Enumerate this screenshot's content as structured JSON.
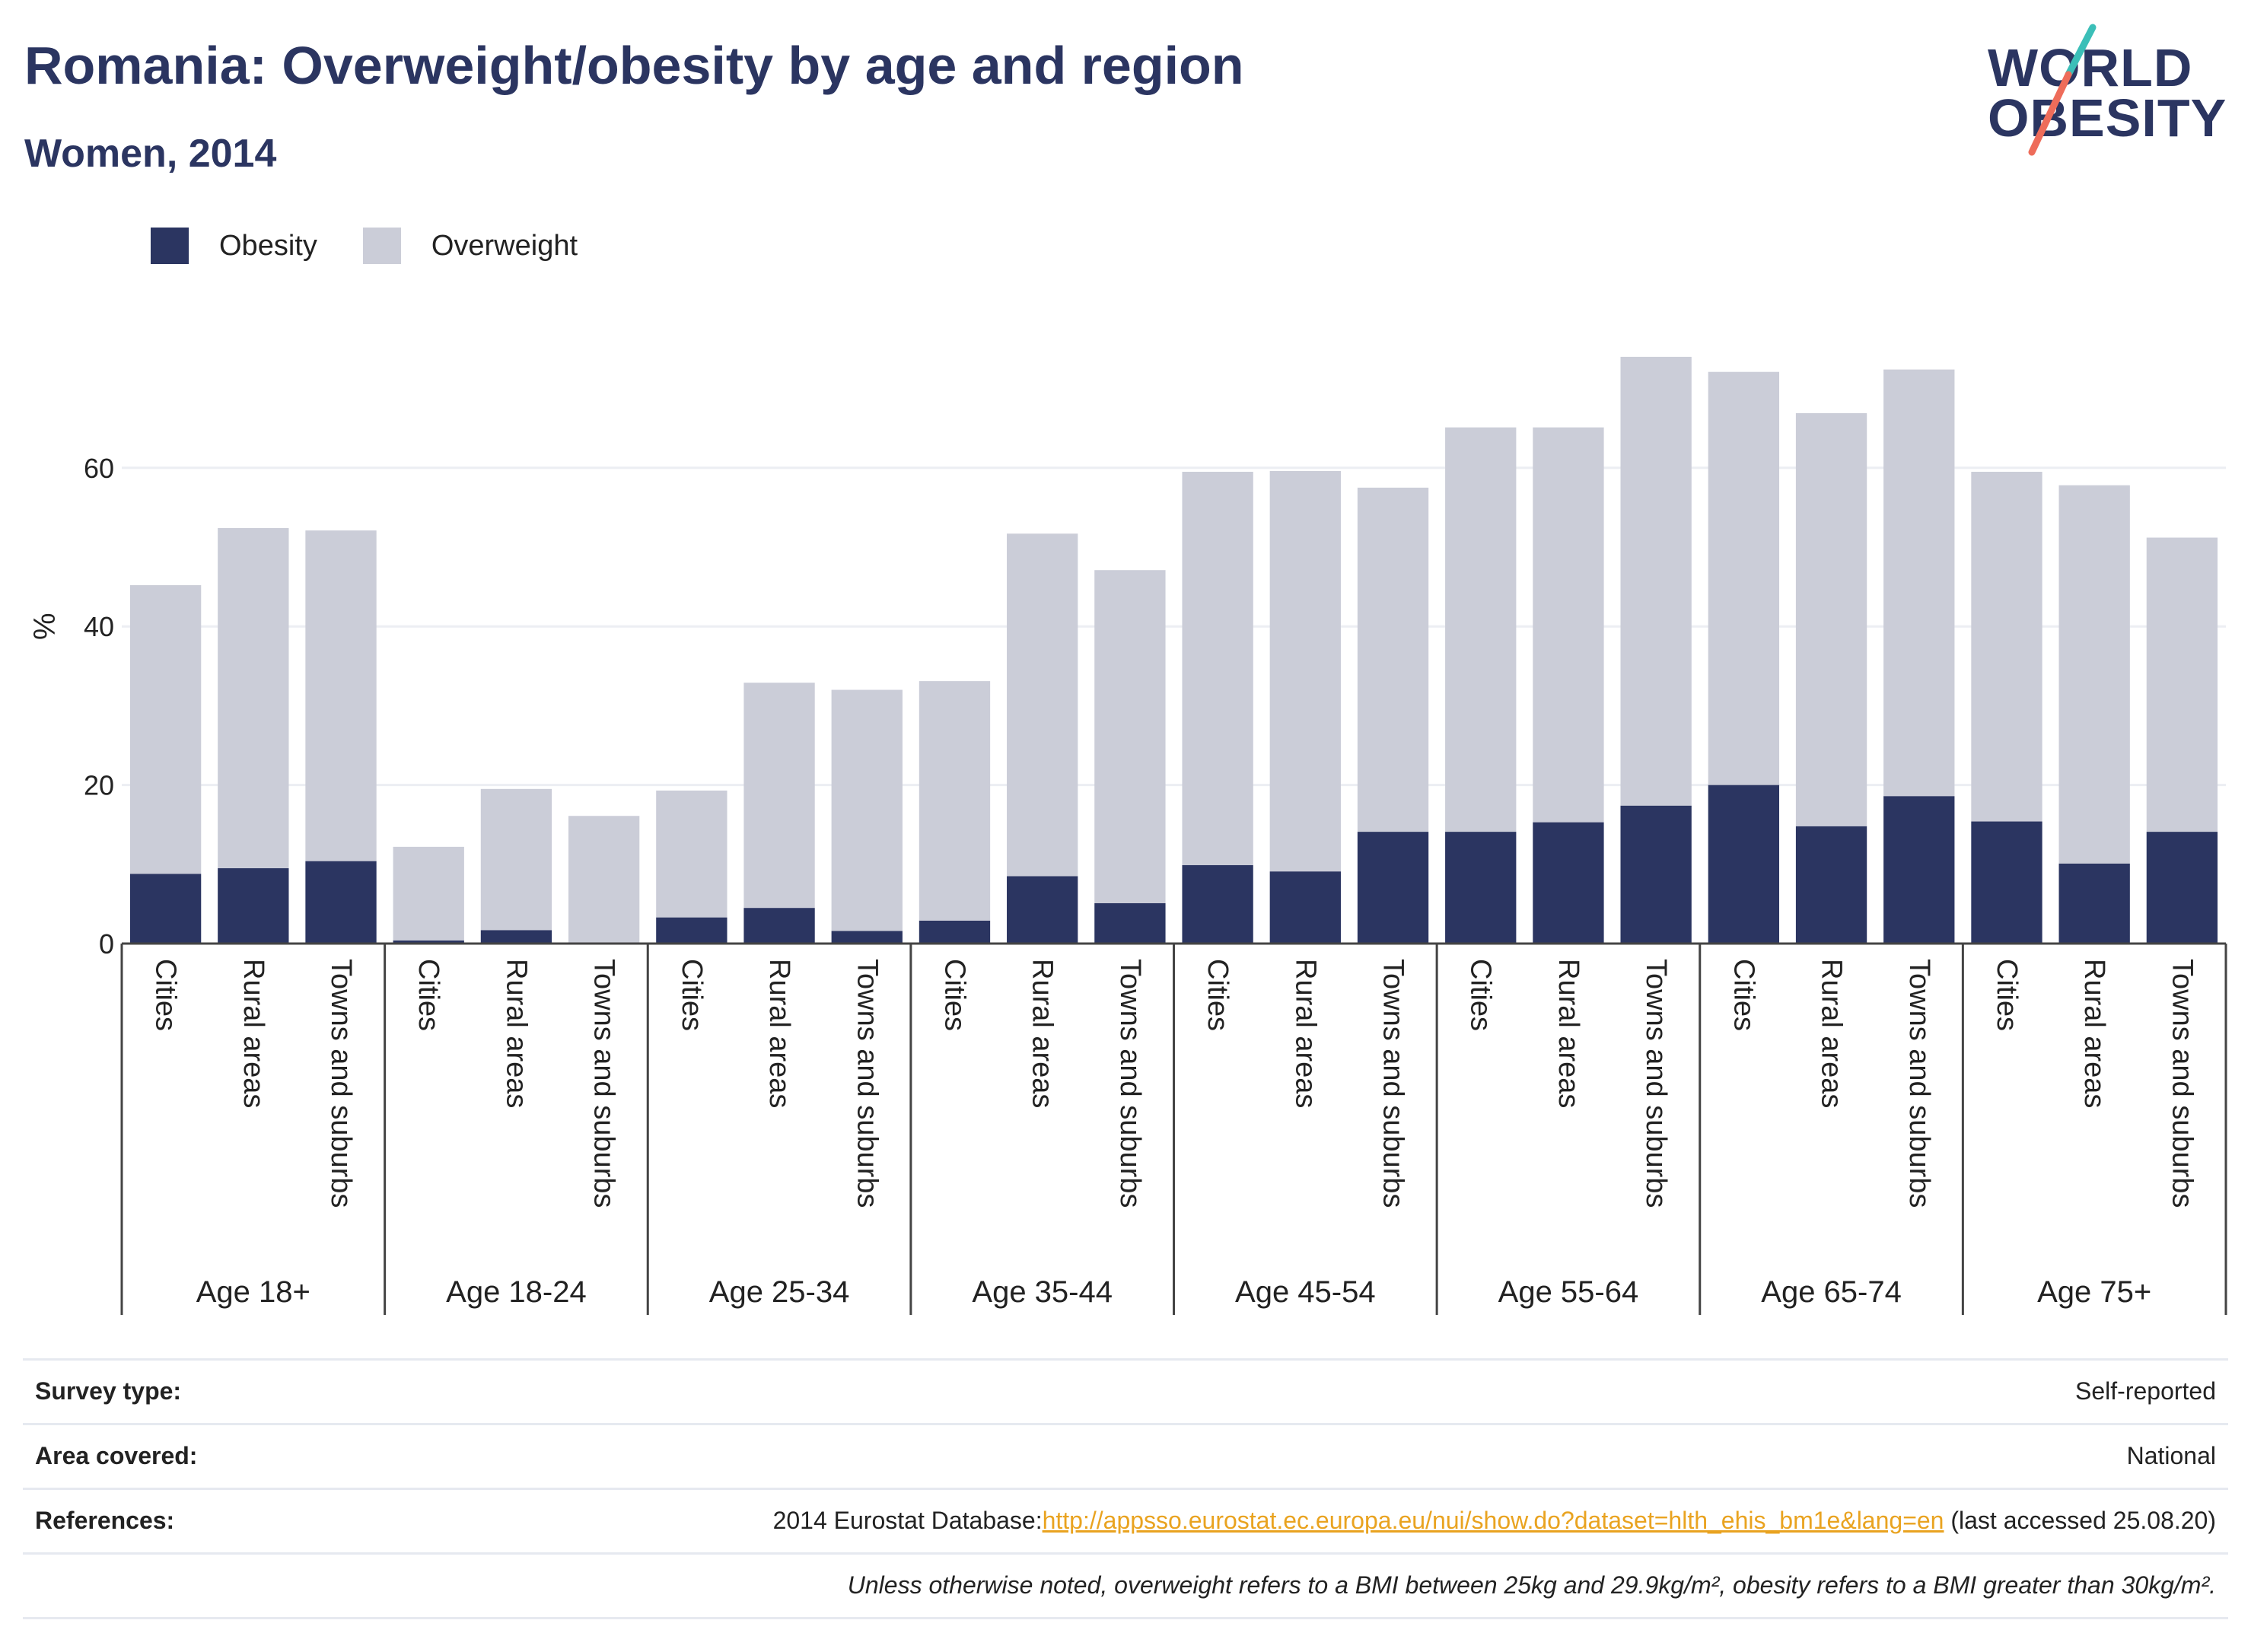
{
  "header": {
    "title": "Romania: Overweight/obesity by age and region",
    "subtitle": "Women, 2014"
  },
  "logo": {
    "line1": "WORLD",
    "line2": "OBESITY",
    "accent_teal": "#3bbfb8",
    "accent_coral": "#ee6c5a"
  },
  "legend": [
    {
      "label": "Obesity",
      "color": "#2b3561"
    },
    {
      "label": "Overweight",
      "color": "#cbcdd8"
    }
  ],
  "chart_data": {
    "type": "bar",
    "stacked": true,
    "ylabel": "%",
    "ylim": [
      0,
      80
    ],
    "yticks": [
      0,
      20,
      40,
      60
    ],
    "grid": true,
    "legend_position": "top-left",
    "groups": [
      "Age 18+",
      "Age 18-24",
      "Age 25-34",
      "Age 35-44",
      "Age 45-54",
      "Age 55-64",
      "Age 65-74",
      "Age 75+"
    ],
    "subcategories": [
      "Cities",
      "Rural areas",
      "Towns and suburbs"
    ],
    "series": [
      {
        "name": "Obesity",
        "color": "#2b3561",
        "values": [
          8.8,
          9.5,
          10.4,
          0.4,
          1.7,
          0.1,
          3.3,
          4.5,
          1.6,
          2.9,
          8.5,
          5.1,
          9.9,
          9.1,
          14.1,
          14.1,
          15.3,
          17.4,
          20.0,
          14.8,
          18.6,
          15.4,
          10.1,
          14.1
        ]
      },
      {
        "name": "Overweight",
        "color": "#cbcdd8",
        "values": [
          36.4,
          42.9,
          41.7,
          11.8,
          17.8,
          16.0,
          16.0,
          28.4,
          30.4,
          30.2,
          43.2,
          42.0,
          49.6,
          50.5,
          43.4,
          51.0,
          49.8,
          56.6,
          52.1,
          52.1,
          53.8,
          44.1,
          47.7,
          37.1
        ]
      }
    ]
  },
  "footer": {
    "rows": [
      {
        "key": "Survey type:",
        "value": "Self-reported"
      },
      {
        "key": "Area covered:",
        "value": "National"
      },
      {
        "key": "References:",
        "value_prefix": "2014 Eurostat Database:",
        "link": "http://appsso.eurostat.ec.europa.eu/nui/show.do?dataset=hlth_ehis_bm1e&lang=en",
        "value_suffix": " (last accessed 25.08.20)"
      }
    ],
    "note": "Unless otherwise noted, overweight refers to a BMI between 25kg and 29.9kg/m², obesity refers to a BMI greater than 30kg/m²."
  }
}
